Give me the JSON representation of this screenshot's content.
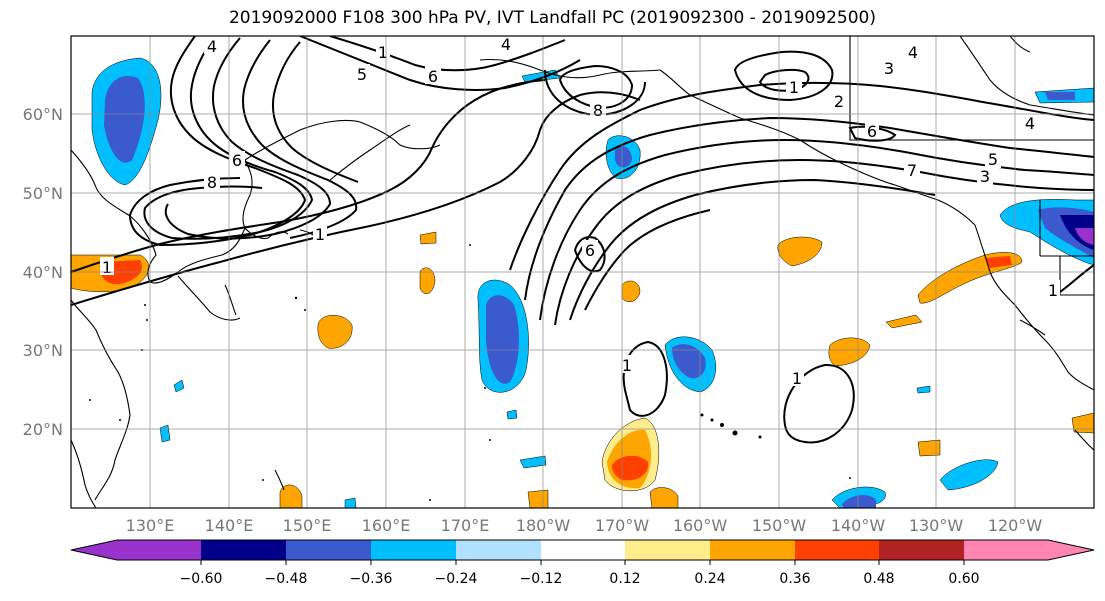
{
  "title": "2019092000 F108 300 hPa PV, IVT Landfall PC (2019092300 - 2019092500)",
  "lat_labels": [
    "60°N",
    "50°N",
    "40°N",
    "30°N",
    "20°N"
  ],
  "lon_labels": [
    "130°E",
    "140°E",
    "150°E",
    "160°E",
    "170°E",
    "180°W",
    "170°W",
    "160°W",
    "150°W",
    "140°W",
    "130°W",
    "120°W"
  ],
  "contour_labels": [
    "4",
    "1",
    "4",
    "5",
    "6",
    "8",
    "1",
    "2",
    "3",
    "4",
    "4",
    "6",
    "5",
    "3",
    "7",
    "6",
    "8",
    "1",
    "6",
    "1",
    "1",
    "1",
    "1"
  ],
  "colorbar": {
    "colors": [
      "#9932cc",
      "#00008b",
      "#3a5acd",
      "#00bfff",
      "#b0e2ff",
      "#ffffff",
      "#ffec8b",
      "#ffa500",
      "#ff4000",
      "#b22222",
      "#ff85b3"
    ],
    "tick_labels": [
      "−0.60",
      "−0.48",
      "−0.36",
      "−0.24",
      "−0.12",
      "0.12",
      "0.24",
      "0.36",
      "0.48",
      "0.60"
    ]
  }
}
